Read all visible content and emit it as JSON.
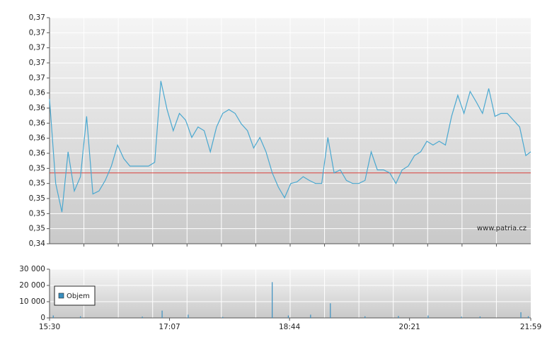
{
  "chart_data": [
    {
      "type": "line",
      "x": [
        "15:30",
        "15:35",
        "15:40",
        "15:45",
        "15:50",
        "15:55",
        "16:00",
        "16:05",
        "16:10",
        "16:15",
        "16:20",
        "16:25",
        "16:30",
        "16:35",
        "16:40",
        "16:45",
        "16:50",
        "16:55",
        "17:00",
        "17:05",
        "17:10",
        "17:15",
        "17:20",
        "17:25",
        "17:30",
        "17:35",
        "17:40",
        "17:45",
        "17:50",
        "17:55",
        "18:00",
        "18:05",
        "18:10",
        "18:15",
        "18:20",
        "18:25",
        "18:30",
        "18:35",
        "18:40",
        "18:45",
        "18:50",
        "18:55",
        "19:00",
        "19:05",
        "19:10",
        "19:15",
        "19:20",
        "19:25",
        "19:30",
        "19:35",
        "19:40",
        "19:45",
        "19:50",
        "19:55",
        "20:00",
        "20:05",
        "20:10",
        "20:15",
        "20:20",
        "20:25",
        "20:30",
        "20:35",
        "20:40",
        "20:45",
        "20:50",
        "20:55",
        "21:00",
        "21:05",
        "21:10",
        "21:15",
        "21:20",
        "21:25",
        "21:30",
        "21:35",
        "21:40",
        "21:45",
        "21:50",
        "21:55",
        "21:59"
      ],
      "series": [
        {
          "color": "#4aa8d0",
          "values": [
            0.3632,
            0.352,
            0.3482,
            0.3562,
            0.351,
            0.3529,
            0.3609,
            0.3506,
            0.351,
            0.3524,
            0.3543,
            0.3571,
            0.3553,
            0.3543,
            0.3543,
            0.3543,
            0.3543,
            0.3548,
            0.3656,
            0.3618,
            0.359,
            0.3613,
            0.3604,
            0.3581,
            0.3595,
            0.359,
            0.3562,
            0.3595,
            0.3613,
            0.3618,
            0.3613,
            0.3599,
            0.359,
            0.3567,
            0.3581,
            0.3562,
            0.3534,
            0.3515,
            0.3501,
            0.352,
            0.3522,
            0.3529,
            0.3524,
            0.352,
            0.352,
            0.3581,
            0.3534,
            0.3538,
            0.3524,
            0.352,
            0.352,
            0.3524,
            0.3562,
            0.3538,
            0.3538,
            0.3534,
            0.352,
            0.3538,
            0.3543,
            0.3557,
            0.3562,
            0.3576,
            0.3571,
            0.3576,
            0.3571,
            0.3609,
            0.3637,
            0.3613,
            0.3642,
            0.3628,
            0.3613,
            0.3646,
            0.3609,
            0.3613,
            0.3613,
            0.3604,
            0.3595,
            0.3557,
            0.3562
          ]
        }
      ],
      "reference": {
        "value": 0.3534,
        "color": "#d9413b"
      },
      "xlim": [
        "15:30",
        "21:59"
      ],
      "ylim": [
        0.344,
        0.374
      ],
      "yticks": [
        {
          "value": 0.344,
          "label": "0,34"
        },
        {
          "value": 0.346,
          "label": "0,35"
        },
        {
          "value": 0.348,
          "label": "0,35"
        },
        {
          "value": 0.35,
          "label": "0,35"
        },
        {
          "value": 0.352,
          "label": "0,35"
        },
        {
          "value": 0.354,
          "label": "0,35"
        },
        {
          "value": 0.356,
          "label": "0,36"
        },
        {
          "value": 0.358,
          "label": "0,36"
        },
        {
          "value": 0.36,
          "label": "0,36"
        },
        {
          "value": 0.362,
          "label": "0,36"
        },
        {
          "value": 0.364,
          "label": "0,36"
        },
        {
          "value": 0.366,
          "label": "0,37"
        },
        {
          "value": 0.368,
          "label": "0,37"
        },
        {
          "value": 0.37,
          "label": "0,37"
        },
        {
          "value": 0.372,
          "label": "0,37"
        },
        {
          "value": 0.374,
          "label": "0,37"
        }
      ],
      "grid": true,
      "watermark": "www.patria.cz"
    },
    {
      "type": "bar",
      "x": [
        "15:33",
        "15:55",
        "16:45",
        "17:01",
        "17:22",
        "17:50",
        "18:30",
        "18:43",
        "19:01",
        "19:17",
        "19:45",
        "20:12",
        "20:36",
        "21:03",
        "21:18",
        "21:51",
        "21:57"
      ],
      "series": [
        {
          "name": "Objem",
          "color": "#3a8fc0",
          "values": [
            1500,
            1000,
            800,
            4500,
            2000,
            600,
            22000,
            1500,
            2000,
            9000,
            1000,
            1200,
            1500,
            800,
            900,
            3500,
            1000
          ]
        }
      ],
      "xlim": [
        "15:30",
        "21:59"
      ],
      "xticks": [
        "15:30",
        "17:07",
        "18:44",
        "20:21",
        "21:59"
      ],
      "ylim": [
        0,
        30000
      ],
      "yticks": [
        0,
        {
          "value": 10000,
          "label": "10 000"
        },
        {
          "value": 20000,
          "label": "20 000"
        },
        {
          "value": 30000,
          "label": "30 000"
        }
      ],
      "grid": true,
      "legend": "top-left"
    }
  ]
}
